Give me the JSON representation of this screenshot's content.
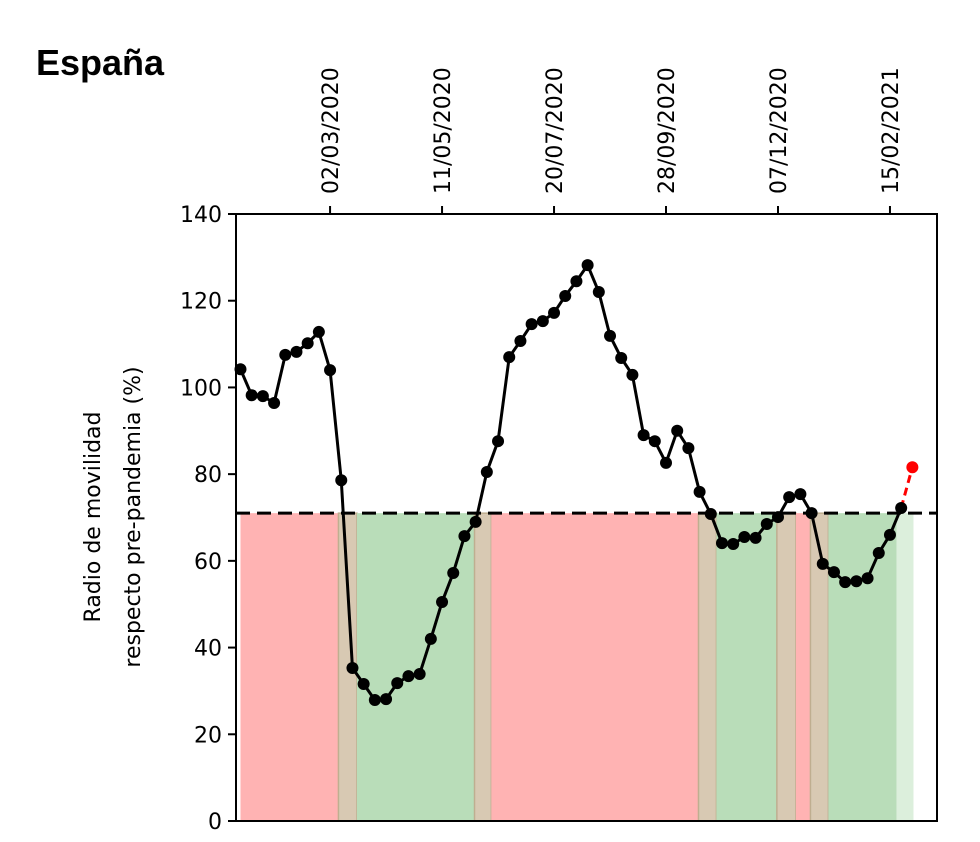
{
  "chart_data": {
    "type": "line",
    "title": "España",
    "ylabel": [
      "Radio de movilidad",
      "respecto pre-pandemia (%)"
    ],
    "xlabel": "",
    "x_unit": "week index (weekly, index 8 = 02/03/2020)",
    "xlim": [
      -0.4,
      62.2
    ],
    "ylim": [
      0,
      140
    ],
    "yticks": [
      0,
      20,
      40,
      60,
      80,
      100,
      120,
      140
    ],
    "xticks": [
      {
        "x": 8,
        "label": "02/03/2020"
      },
      {
        "x": 18,
        "label": "11/05/2020"
      },
      {
        "x": 28,
        "label": "20/07/2020"
      },
      {
        "x": 38,
        "label": "28/09/2020"
      },
      {
        "x": 48,
        "label": "07/12/2020"
      },
      {
        "x": 58,
        "label": "15/02/2021"
      }
    ],
    "threshold": 71,
    "series": [
      {
        "name": "movilidad",
        "color": "#000000",
        "values": [
          104.2,
          98.2,
          98,
          96.4,
          107.5,
          108.2,
          110.2,
          112.8,
          104,
          78.6,
          35.3,
          31.6,
          27.9,
          28.1,
          31.8,
          33.4,
          33.9,
          42,
          50.5,
          57.2,
          65.7,
          69,
          80.5,
          87.6,
          107,
          110.7,
          114.6,
          115.3,
          117.2,
          121.1,
          124.5,
          128.2,
          122,
          111.9,
          106.8,
          102.9,
          89,
          87.6,
          82.6,
          90,
          86,
          75.9,
          70.8,
          64.1,
          63.9,
          65.5,
          65.3,
          68.5,
          70.1,
          74.7,
          75.4,
          71,
          59.3,
          57.4,
          55.1,
          55.3,
          56,
          61.8,
          66,
          72.2
        ]
      },
      {
        "name": "prediccion",
        "color": "#ff0000",
        "x": [
          59,
          60
        ],
        "values": [
          72.2,
          81.6
        ]
      }
    ],
    "bands": [
      {
        "from": 0,
        "to": 8.75,
        "color": "#ffb3b3"
      },
      {
        "from": 8.75,
        "to": 10.4,
        "color": "#d8c9b3"
      },
      {
        "from": 10.4,
        "to": 20.9,
        "color": "#b9ddb9"
      },
      {
        "from": 20.9,
        "to": 22.4,
        "color": "#d8c9b3"
      },
      {
        "from": 22.4,
        "to": 40.9,
        "color": "#ffb3b3"
      },
      {
        "from": 40.9,
        "to": 42.5,
        "color": "#d8c9b3"
      },
      {
        "from": 42.5,
        "to": 47.9,
        "color": "#b9ddb9"
      },
      {
        "from": 47.9,
        "to": 49.6,
        "color": "#d8c9b3"
      },
      {
        "from": 49.6,
        "to": 50.9,
        "color": "#ffb3b3"
      },
      {
        "from": 50.9,
        "to": 52.5,
        "color": "#d8c9b3"
      },
      {
        "from": 52.5,
        "to": 58.6,
        "color": "#b9ddb9"
      },
      {
        "from": 58.6,
        "to": 60.1,
        "color": "#dcefdc"
      }
    ]
  }
}
